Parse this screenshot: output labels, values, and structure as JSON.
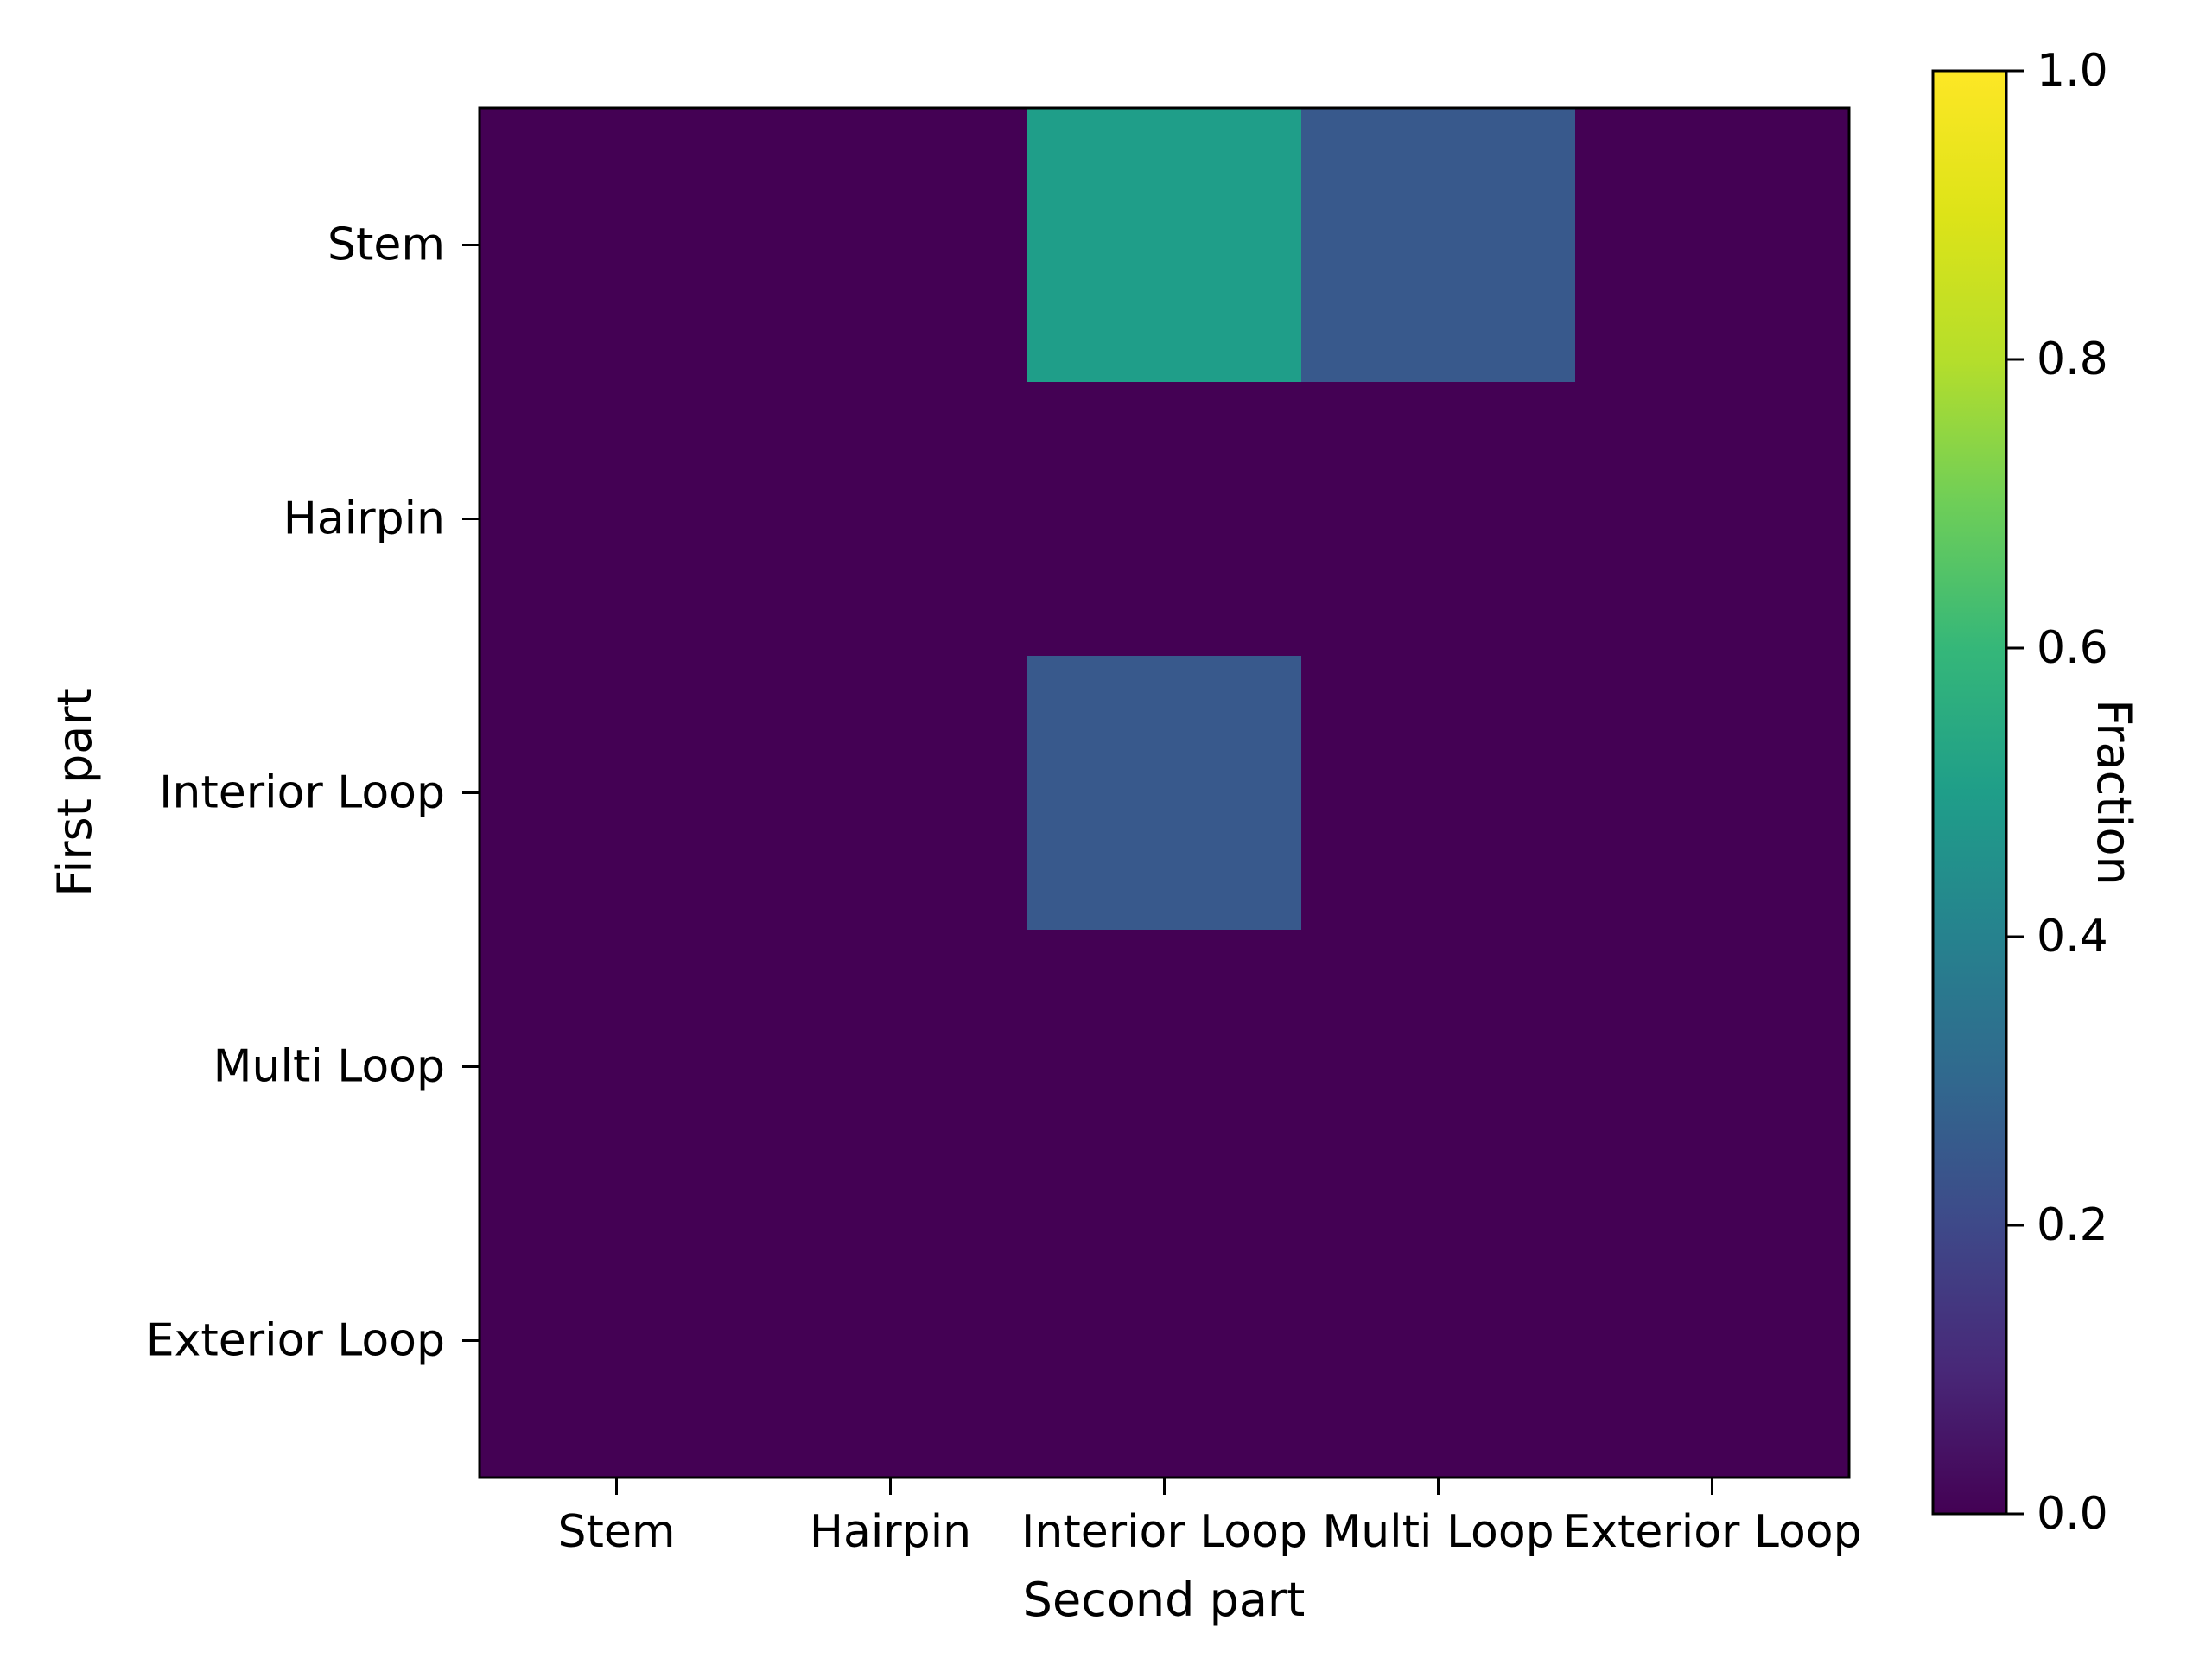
{
  "chart_data": {
    "type": "heatmap",
    "title": "",
    "xlabel": "Second part",
    "ylabel": "First part",
    "x_categories": [
      "Stem",
      "Hairpin",
      "Interior Loop",
      "Multi Loop",
      "Exterior Loop"
    ],
    "y_categories": [
      "Stem",
      "Hairpin",
      "Interior Loop",
      "Multi Loop",
      "Exterior Loop"
    ],
    "values": [
      [
        0.0,
        0.0,
        0.5,
        0.25,
        0.0
      ],
      [
        0.0,
        0.0,
        0.0,
        0.0,
        0.0
      ],
      [
        0.0,
        0.0,
        0.25,
        0.0,
        0.0
      ],
      [
        0.0,
        0.0,
        0.0,
        0.0,
        0.0
      ],
      [
        0.0,
        0.0,
        0.0,
        0.0,
        0.0
      ]
    ],
    "colorbar": {
      "label": "Fraction",
      "range": [
        0.0,
        1.0
      ],
      "ticks": [
        0.0,
        0.2,
        0.4,
        0.6,
        0.8,
        1.0
      ],
      "tick_labels": [
        "0.0",
        "0.2",
        "0.4",
        "0.6",
        "0.8",
        "1.0"
      ],
      "colormap": "viridis"
    }
  }
}
